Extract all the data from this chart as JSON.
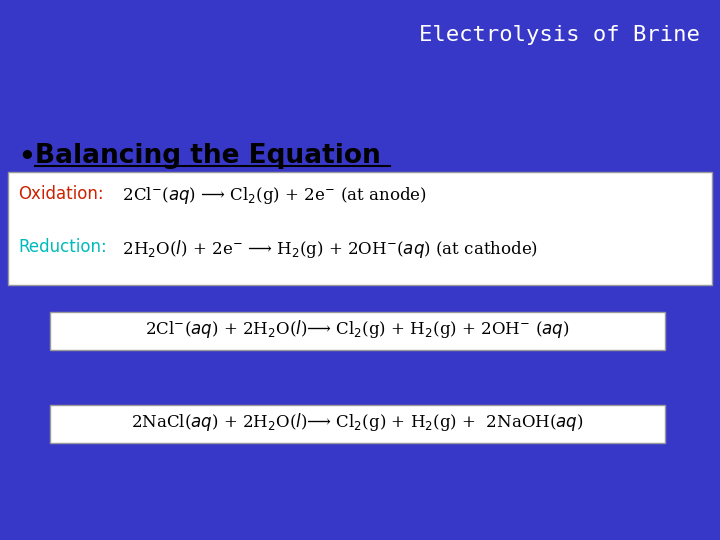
{
  "background_color": "#3838c8",
  "title": "Electrolysis of Brine",
  "title_color": "#ffffff",
  "title_fontsize": 16,
  "bullet_color": "#000000",
  "bullet_fontsize": 19,
  "ox_label": "Oxidation:",
  "ox_label_color": "#cc2200",
  "ox_eq": "  2Cl$^{-}$($aq$) ⟶ Cl$_{2}$(g) + 2e$^{-}$ (at anode)",
  "red_label": "Reduction:",
  "red_label_color": "#00bbbb",
  "red_eq": "  2H$_{2}$O($l$) + 2e$^{-}$ ⟶ H$_{2}$(g) + 2OH$^{-}$($aq$) (at cathode)",
  "box2_eq": "2Cl$^{-}$($aq$) + 2H$_{2}$O($l$)⟶ Cl$_{2}$(g) + H$_{2}$(g) + 2OH$^{-}$ ($aq$)",
  "box3_eq": "2NaCl($aq$) + 2H$_{2}$O($l$)⟶ Cl$_{2}$(g) + H$_{2}$(g) +  2NaOH($aq$)",
  "box_bg": "#ffffff",
  "box_text_color": "#000000",
  "eq_fontsize": 12,
  "label_fontsize": 12
}
